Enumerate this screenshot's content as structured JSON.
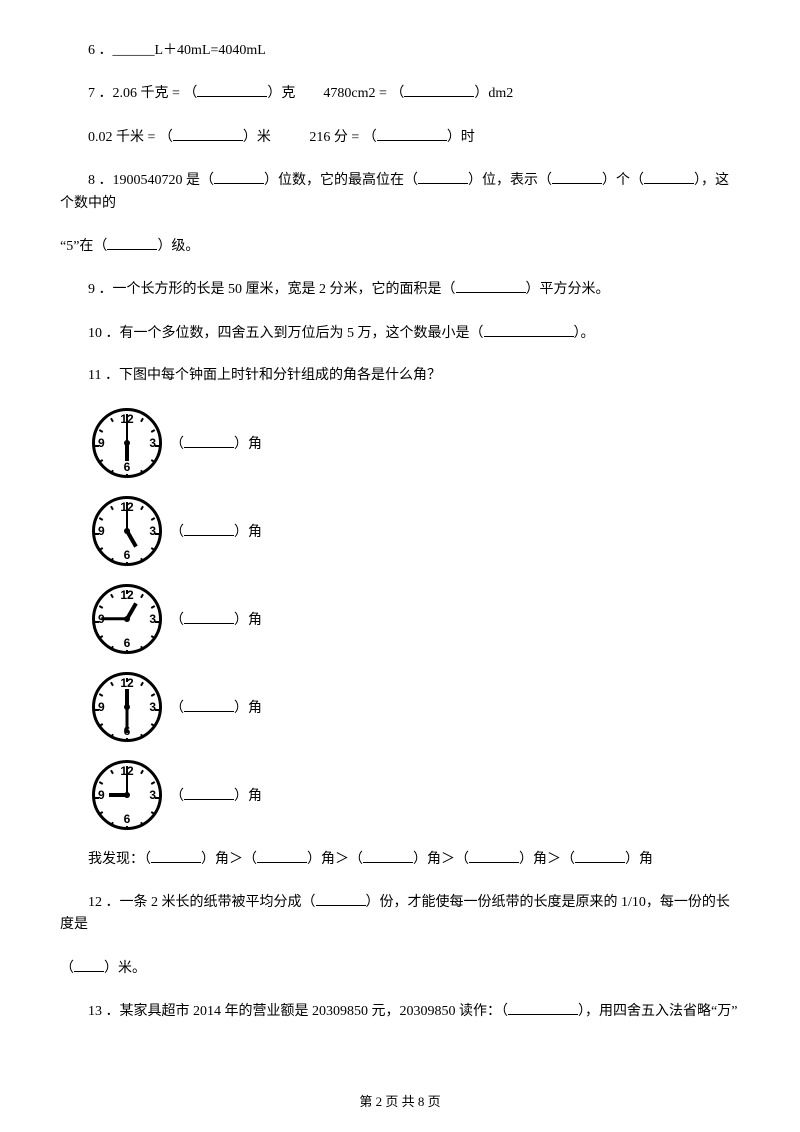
{
  "q6": {
    "num": "6 ．",
    "text": "______L＋40mL=4040mL"
  },
  "q7": {
    "num": "7 ．",
    "part1_a": "2.06 千克 = （",
    "part1_b": "）克",
    "part2_a": "4780cm2 = （",
    "part2_b": "）dm2",
    "part3_a": "0.02 千米 = （",
    "part3_b": "）米",
    "part4_a": "216 分 = （",
    "part4_b": "）时"
  },
  "q8": {
    "num": "8 ．",
    "t1": "1900540720 是（",
    "t2": "）位数，它的最高位在（",
    "t3": "）位，表示（",
    "t4": "）个（",
    "t5": "），这个数中的",
    "line2_a": "“5”在（",
    "line2_b": "）级。"
  },
  "q9": {
    "num": "9 ．",
    "t1": "一个长方形的长是 50 厘米，宽是 2 分米，它的面积是（",
    "t2": "）平方分米。"
  },
  "q10": {
    "num": "10 ．",
    "t1": "有一个多位数，四舍五入到万位后为 5 万，这个数最小是（",
    "t2": "）。"
  },
  "q11": {
    "num": "11 ．",
    "title": "下图中每个钟面上时针和分针组成的角各是什么角？",
    "blank_label_a": "（",
    "blank_label_b": "）角",
    "clocks": [
      {
        "hour_rotate": 180,
        "minute_rotate": 0
      },
      {
        "hour_rotate": 150,
        "minute_rotate": 0
      },
      {
        "hour_rotate": 30,
        "minute_rotate": 270
      },
      {
        "hour_rotate": 0,
        "minute_rotate": 180
      },
      {
        "hour_rotate": 270,
        "minute_rotate": 0
      }
    ],
    "discover_a": "我发现：（",
    "discover_mid": "）角＞（",
    "discover_end": "）角"
  },
  "q12": {
    "num": "12 ．",
    "t1": "一条 2 米长的纸带被平均分成（",
    "t2": "）份，才能使每一份纸带的长度是原来的 1/10，每一份的长度是",
    "line2_a": "（",
    "line2_b": "）米。"
  },
  "q13": {
    "num": "13 ．",
    "t1": "某家具超市 2014 年的营业额是 20309850 元，20309850 读作：（",
    "t2": "），用四舍五入法省略“万”"
  },
  "clock_nums": {
    "n12": "12",
    "n3": "3",
    "n6": "6",
    "n9": "9"
  },
  "footer": "第 2 页 共 8 页",
  "style": {
    "text_color": "#000000",
    "bg_color": "#ffffff",
    "font_size_body": 14,
    "font_size_footer": 13
  }
}
